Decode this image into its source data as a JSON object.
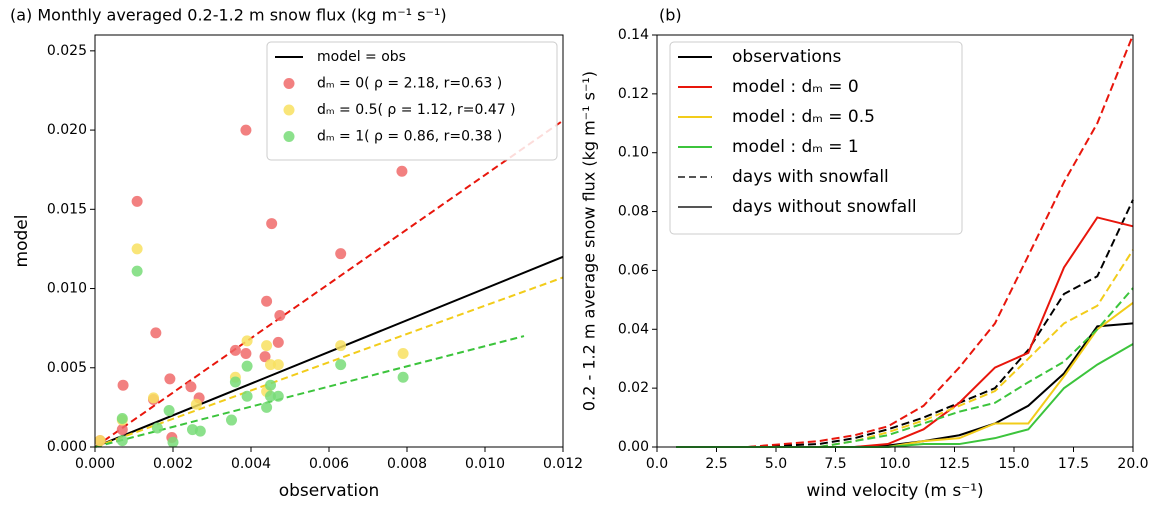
{
  "chart_data": [
    {
      "type": "scatter",
      "title": "(a) Monthly averaged 0.2-1.2 m snow flux (kg m⁻¹ s⁻¹)",
      "x_label": "observation",
      "y_label": "model",
      "xlim": [
        0,
        0.012
      ],
      "ylim": [
        0,
        0.026
      ],
      "xticks": [
        {
          "value": 0,
          "label": "0.000"
        },
        {
          "value": 0.002,
          "label": "0.002"
        },
        {
          "value": 0.004,
          "label": "0.004"
        },
        {
          "value": 0.006,
          "label": "0.006"
        },
        {
          "value": 0.008,
          "label": "0.008"
        },
        {
          "value": 0.01,
          "label": "0.010"
        },
        {
          "value": 0.012,
          "label": "0.012"
        }
      ],
      "yticks": [
        {
          "value": 0,
          "label": "0.000"
        },
        {
          "value": 0.005,
          "label": "0.005"
        },
        {
          "value": 0.01,
          "label": "0.010"
        },
        {
          "value": 0.015,
          "label": "0.015"
        },
        {
          "value": 0.02,
          "label": "0.020"
        },
        {
          "value": 0.025,
          "label": "0.025"
        }
      ],
      "legend": "upper right",
      "lines": [
        {
          "name": "model = obs",
          "color": "#000000",
          "dashed": false,
          "x": [
            0,
            0.012
          ],
          "values": [
            0,
            0.012
          ]
        },
        {
          "color": "#e8160c",
          "dashed": true,
          "x": [
            0,
            0.012
          ],
          "values": [
            0,
            0.0206
          ]
        },
        {
          "color": "#f2cc1a",
          "dashed": true,
          "x": [
            0,
            0.012
          ],
          "values": [
            0,
            0.0107
          ]
        },
        {
          "color": "#3cc43c",
          "dashed": true,
          "x": [
            0,
            0.011
          ],
          "values": [
            0,
            0.007
          ]
        }
      ],
      "series": [
        {
          "name": "dₘ = 0( ρ = 2.18, r=0.63 )",
          "color": "#f06a6a",
          "x": [
            0.00013,
            0.0007,
            0.00072,
            0.00108,
            0.0015,
            0.00156,
            0.00192,
            0.00197,
            0.00246,
            0.00267,
            0.0036,
            0.00387,
            0.00387,
            0.00436,
            0.0044,
            0.00453,
            0.0047,
            0.00474,
            0.0063,
            0.00787
          ],
          "values": [
            0.0004,
            0.0011,
            0.0039,
            0.0155,
            0.003,
            0.0072,
            0.0043,
            0.0006,
            0.0038,
            0.0031,
            0.0061,
            0.02,
            0.0059,
            0.0057,
            0.0092,
            0.0141,
            0.0066,
            0.0083,
            0.0122,
            0.0174
          ]
        },
        {
          "name": "dₘ = 0.5( ρ = 1.12, r=0.47 )",
          "color": "#f8e060",
          "x": [
            0.00013,
            0.0007,
            0.00108,
            0.0015,
            0.0026,
            0.0036,
            0.0039,
            0.0044,
            0.0044,
            0.0045,
            0.0047,
            0.0063,
            0.0079
          ],
          "values": [
            0.0004,
            0.0017,
            0.0125,
            0.0031,
            0.0027,
            0.0044,
            0.0067,
            0.0064,
            0.0035,
            0.0052,
            0.0052,
            0.0064,
            0.0059
          ]
        },
        {
          "name": "dₘ = 1( ρ = 0.86, r=0.38 )",
          "color": "#78dc78",
          "x": [
            0.0007,
            0.0007,
            0.00108,
            0.0016,
            0.0019,
            0.002,
            0.0025,
            0.0027,
            0.0035,
            0.0036,
            0.0039,
            0.0039,
            0.0044,
            0.0045,
            0.0045,
            0.0047,
            0.0063,
            0.0079
          ],
          "values": [
            0.0004,
            0.0018,
            0.0111,
            0.0012,
            0.0023,
            0.0003,
            0.0011,
            0.001,
            0.0017,
            0.0041,
            0.0051,
            0.0032,
            0.0025,
            0.0039,
            0.0032,
            0.0032,
            0.0052,
            0.0044
          ]
        }
      ]
    },
    {
      "type": "line",
      "title": "(b)",
      "x_label": "wind velocity (m s⁻¹)",
      "y_label": "0.2 - 1.2 m average snow flux (kg m⁻¹ s⁻¹)",
      "xlim": [
        0,
        20
      ],
      "ylim": [
        0,
        0.14
      ],
      "xticks": [
        {
          "value": 0,
          "label": "0.0"
        },
        {
          "value": 2.5,
          "label": "2.5"
        },
        {
          "value": 5,
          "label": "5.0"
        },
        {
          "value": 7.5,
          "label": "7.5"
        },
        {
          "value": 10,
          "label": "10.0"
        },
        {
          "value": 12.5,
          "label": "12.5"
        },
        {
          "value": 15,
          "label": "15.0"
        },
        {
          "value": 17.5,
          "label": "17.5"
        },
        {
          "value": 20,
          "label": "20.0"
        }
      ],
      "yticks": [
        {
          "value": 0,
          "label": "0.00"
        },
        {
          "value": 0.02,
          "label": "0.02"
        },
        {
          "value": 0.04,
          "label": "0.04"
        },
        {
          "value": 0.06,
          "label": "0.06"
        },
        {
          "value": 0.08,
          "label": "0.08"
        },
        {
          "value": 0.1,
          "label": "0.10"
        },
        {
          "value": 0.12,
          "label": "0.12"
        },
        {
          "value": 0.14,
          "label": "0.14"
        }
      ],
      "legend": "upper left",
      "x": [
        0.8,
        2.3,
        3.8,
        5.3,
        6.8,
        8.3,
        9.7,
        11.2,
        12.7,
        14.2,
        15.6,
        17.1,
        18.5,
        20.0
      ],
      "line_styles": [
        {
          "name": "days with snowfall",
          "dashed": true,
          "color": "#555555"
        },
        {
          "name": "days without snowfall",
          "dashed": false,
          "color": "#555555"
        }
      ],
      "series": [
        {
          "name": "observations",
          "color": "#000000",
          "values_by_style": [
            [
              0,
              0,
              0,
              0.0005,
              0.001,
              0.003,
              0.006,
              0.01,
              0.015,
              0.02,
              0.033,
              0.052,
              0.058,
              0.084
            ],
            [
              0,
              0,
              0,
              0,
              0,
              0,
              0.0005,
              0.002,
              0.004,
              0.008,
              0.014,
              0.025,
              0.041,
              0.042
            ]
          ]
        },
        {
          "name": "model : dₘ = 0",
          "color": "#e8160c",
          "values_by_style": [
            [
              0,
              0,
              0,
              0.001,
              0.002,
              0.004,
              0.007,
              0.014,
              0.027,
              0.042,
              0.065,
              0.09,
              0.11,
              0.14
            ],
            [
              0,
              0,
              0,
              0,
              0,
              0,
              0.001,
              0.006,
              0.015,
              0.027,
              0.032,
              0.061,
              0.078,
              0.075
            ]
          ]
        },
        {
          "name": "model : dₘ = 0.5",
          "color": "#f2cc1a",
          "values_by_style": [
            [
              0,
              0,
              0,
              0,
              0,
              0.002,
              0.005,
              0.009,
              0.014,
              0.019,
              0.03,
              0.042,
              0.048,
              0.067
            ],
            [
              0,
              0,
              0,
              0,
              0,
              0,
              0,
              0.002,
              0.003,
              0.008,
              0.008,
              0.024,
              0.04,
              0.049
            ]
          ]
        },
        {
          "name": "model : dₘ = 1",
          "color": "#3cc43c",
          "values_by_style": [
            [
              0,
              0,
              0,
              0,
              0,
              0.002,
              0.004,
              0.008,
              0.012,
              0.015,
              0.022,
              0.029,
              0.04,
              0.054
            ],
            [
              0,
              0,
              0,
              0,
              0,
              0,
              0,
              0.001,
              0.001,
              0.003,
              0.006,
              0.02,
              0.028,
              0.035
            ]
          ]
        }
      ]
    }
  ]
}
